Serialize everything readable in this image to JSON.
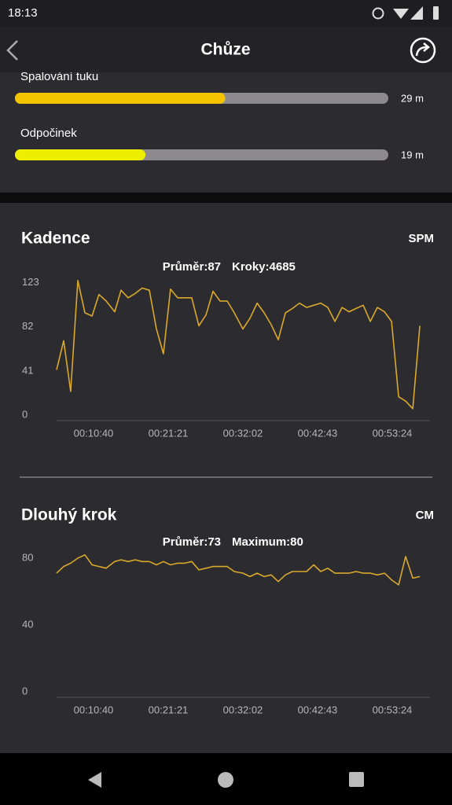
{
  "status_bar": {
    "time": "18:13"
  },
  "header": {
    "title": "Chůze"
  },
  "zones": [
    {
      "label": "Spalování tuku",
      "value": "29 m",
      "percent": 55,
      "color": "#f4c400"
    },
    {
      "label": "Odpočinek",
      "value": "19 m",
      "percent": 33,
      "color": "#eeee00"
    }
  ],
  "chart_data": [
    {
      "type": "line",
      "title": "Kadence",
      "unit": "SPM",
      "stats": [
        "Průměr:87",
        "Kroky:4685"
      ],
      "color": "#d9a92c",
      "x": [
        323,
        384,
        444,
        505,
        566,
        627,
        687,
        748,
        822,
        876,
        937,
        998,
        1058,
        1119,
        1180,
        1240,
        1301,
        1362,
        1423,
        1483,
        1544,
        1605,
        1666,
        1726,
        1787,
        1848,
        1922,
        1983,
        2044,
        2104,
        2165,
        2226,
        2287,
        2347,
        2408,
        2469,
        2530,
        2590,
        2651,
        2712,
        2773,
        2833,
        2894,
        2955,
        3016,
        3076,
        3137,
        3198,
        3259,
        3319,
        3380,
        3441
      ],
      "values": [
        42,
        69,
        22,
        125,
        95,
        92,
        112,
        106,
        96,
        116,
        109,
        113,
        118,
        116,
        80,
        57,
        117,
        109,
        109,
        109,
        83,
        93,
        115,
        106,
        106,
        95,
        80,
        90,
        104,
        95,
        84,
        70,
        95,
        99,
        104,
        100,
        102,
        104,
        100,
        87,
        100,
        96,
        99,
        102,
        87,
        100,
        96,
        87,
        17,
        13,
        6,
        83
      ],
      "xlim": [
        323,
        3528
      ],
      "xticks": [
        {
          "value": 640,
          "label": "00:10:40"
        },
        {
          "value": 1281,
          "label": "00:21:21"
        },
        {
          "value": 1922,
          "label": "00:32:02"
        },
        {
          "value": 2563,
          "label": "00:42:43"
        },
        {
          "value": 3204,
          "label": "00:53:24"
        }
      ],
      "ylim": [
        0,
        130
      ],
      "yticks": [
        0,
        41,
        82,
        123
      ]
    },
    {
      "type": "line",
      "title": "Dlouhý krok",
      "unit": "CM",
      "stats": [
        "Průměr:73",
        "Maximum:80"
      ],
      "color": "#d9a92c",
      "x": [
        323,
        384,
        444,
        505,
        566,
        627,
        687,
        748,
        822,
        876,
        937,
        998,
        1058,
        1119,
        1180,
        1240,
        1301,
        1362,
        1423,
        1483,
        1544,
        1605,
        1666,
        1726,
        1787,
        1848,
        1922,
        1983,
        2044,
        2104,
        2165,
        2226,
        2287,
        2347,
        2408,
        2469,
        2530,
        2590,
        2651,
        2712,
        2773,
        2833,
        2894,
        2955,
        3016,
        3076,
        3137,
        3198,
        3259,
        3319,
        3380,
        3441
      ],
      "values": [
        71,
        75,
        77,
        80,
        82,
        76,
        75,
        74,
        78,
        79,
        78,
        79,
        78,
        78,
        76,
        78,
        76,
        77,
        77,
        78,
        73,
        74,
        75,
        75,
        75,
        72,
        71,
        69,
        71,
        69,
        70,
        66,
        70,
        72,
        72,
        72,
        76,
        72,
        74,
        71,
        71,
        71,
        72,
        71,
        71,
        70,
        71,
        67,
        64,
        81,
        68,
        69
      ],
      "xlim": [
        323,
        3528
      ],
      "xticks": [
        {
          "value": 640,
          "label": "00:10:40"
        },
        {
          "value": 1281,
          "label": "00:21:21"
        },
        {
          "value": 1922,
          "label": "00:32:02"
        },
        {
          "value": 2563,
          "label": "00:42:43"
        },
        {
          "value": 3204,
          "label": "00:53:24"
        }
      ],
      "ylim": [
        0,
        85
      ],
      "yticks": [
        0,
        40,
        80
      ]
    }
  ]
}
